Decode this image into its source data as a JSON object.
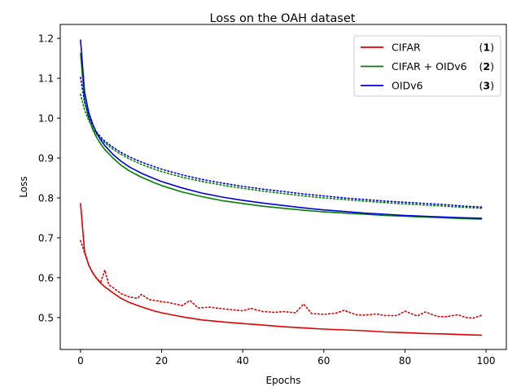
{
  "chart_data": {
    "type": "line",
    "title": "Loss on the OAH dataset",
    "xlabel": "Epochs",
    "ylabel": "Loss",
    "xlim": [
      -5,
      105
    ],
    "ylim": [
      0.42,
      1.235
    ],
    "xticks": [
      0,
      20,
      40,
      60,
      80,
      100
    ],
    "yticks": [
      0.5,
      0.6,
      0.7,
      0.8,
      0.9,
      1.0,
      1.1,
      1.2
    ],
    "grid": false,
    "legend_position": "top-right",
    "series": [
      {
        "name": "CIFAR",
        "number": "1",
        "color": "#e00000",
        "solid": {
          "x": [
            0,
            1,
            2,
            3,
            4,
            5,
            6,
            8,
            10,
            12,
            15,
            18,
            20,
            25,
            30,
            35,
            40,
            45,
            50,
            55,
            60,
            65,
            70,
            75,
            80,
            85,
            90,
            95,
            99
          ],
          "y": [
            0.787,
            0.665,
            0.632,
            0.612,
            0.598,
            0.586,
            0.577,
            0.562,
            0.548,
            0.538,
            0.527,
            0.517,
            0.512,
            0.502,
            0.494,
            0.489,
            0.485,
            0.481,
            0.477,
            0.474,
            0.471,
            0.469,
            0.467,
            0.464,
            0.462,
            0.46,
            0.459,
            0.457,
            0.456
          ]
        },
        "dotted": {
          "x": [
            0,
            1,
            2,
            3,
            4,
            5,
            6,
            7,
            8,
            10,
            12,
            14,
            15,
            17,
            20,
            22,
            25,
            27,
            29,
            32,
            35,
            38,
            40,
            42,
            45,
            48,
            50,
            53,
            55,
            57,
            60,
            63,
            65,
            68,
            70,
            73,
            75,
            78,
            80,
            83,
            85,
            88,
            90,
            93,
            95,
            97,
            99
          ],
          "y": [
            0.693,
            0.662,
            0.632,
            0.612,
            0.597,
            0.59,
            0.619,
            0.582,
            0.575,
            0.56,
            0.552,
            0.548,
            0.558,
            0.545,
            0.54,
            0.537,
            0.53,
            0.543,
            0.524,
            0.526,
            0.522,
            0.519,
            0.517,
            0.523,
            0.515,
            0.513,
            0.515,
            0.512,
            0.534,
            0.51,
            0.508,
            0.511,
            0.518,
            0.507,
            0.506,
            0.509,
            0.505,
            0.505,
            0.516,
            0.504,
            0.514,
            0.503,
            0.502,
            0.507,
            0.5,
            0.499,
            0.506
          ]
        }
      },
      {
        "name": "CIFAR + OIDv6",
        "number": "2",
        "color": "#008000",
        "solid": {
          "x": [
            0,
            1,
            2,
            3,
            4,
            5,
            6,
            8,
            10,
            12,
            15,
            18,
            20,
            25,
            30,
            35,
            40,
            45,
            50,
            55,
            60,
            65,
            70,
            75,
            80,
            85,
            90,
            95,
            99
          ],
          "y": [
            1.163,
            1.045,
            1.0,
            0.972,
            0.951,
            0.935,
            0.921,
            0.9,
            0.882,
            0.868,
            0.852,
            0.839,
            0.831,
            0.815,
            0.803,
            0.793,
            0.786,
            0.779,
            0.774,
            0.769,
            0.765,
            0.762,
            0.759,
            0.756,
            0.754,
            0.752,
            0.75,
            0.748,
            0.747
          ]
        },
        "dotted": {
          "x": [
            0,
            1,
            2,
            3,
            4,
            5,
            6,
            8,
            10,
            12,
            15,
            18,
            20,
            25,
            30,
            35,
            40,
            45,
            50,
            55,
            60,
            65,
            70,
            75,
            80,
            85,
            90,
            95,
            99
          ],
          "y": [
            1.06,
            1.02,
            0.995,
            0.975,
            0.96,
            0.948,
            0.938,
            0.922,
            0.909,
            0.898,
            0.884,
            0.873,
            0.866,
            0.852,
            0.841,
            0.832,
            0.824,
            0.817,
            0.811,
            0.805,
            0.8,
            0.796,
            0.792,
            0.788,
            0.785,
            0.782,
            0.779,
            0.776,
            0.774
          ]
        }
      },
      {
        "name": "OIDv6",
        "number": "3",
        "color": "#0000dd",
        "solid": {
          "x": [
            0,
            1,
            2,
            3,
            4,
            5,
            6,
            8,
            10,
            12,
            15,
            18,
            20,
            25,
            30,
            35,
            40,
            45,
            50,
            55,
            60,
            65,
            70,
            75,
            80,
            85,
            90,
            95,
            99
          ],
          "y": [
            1.197,
            1.065,
            1.015,
            0.985,
            0.962,
            0.945,
            0.931,
            0.909,
            0.892,
            0.878,
            0.862,
            0.849,
            0.841,
            0.825,
            0.812,
            0.802,
            0.794,
            0.787,
            0.781,
            0.775,
            0.77,
            0.766,
            0.762,
            0.759,
            0.756,
            0.754,
            0.752,
            0.75,
            0.749
          ]
        },
        "dotted": {
          "x": [
            0,
            1,
            2,
            3,
            4,
            5,
            6,
            8,
            10,
            12,
            15,
            18,
            20,
            25,
            30,
            35,
            40,
            45,
            50,
            55,
            60,
            65,
            70,
            75,
            80,
            85,
            90,
            95,
            99
          ],
          "y": [
            1.102,
            1.04,
            1.005,
            0.982,
            0.965,
            0.952,
            0.942,
            0.927,
            0.914,
            0.903,
            0.89,
            0.879,
            0.872,
            0.858,
            0.846,
            0.837,
            0.829,
            0.822,
            0.816,
            0.81,
            0.805,
            0.8,
            0.796,
            0.792,
            0.789,
            0.786,
            0.783,
            0.779,
            0.777
          ]
        }
      }
    ]
  }
}
